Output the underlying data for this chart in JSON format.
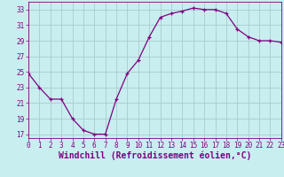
{
  "x": [
    0,
    1,
    2,
    3,
    4,
    5,
    6,
    7,
    8,
    9,
    10,
    11,
    12,
    13,
    14,
    15,
    16,
    17,
    18,
    19,
    20,
    21,
    22,
    23
  ],
  "y": [
    24.8,
    23.0,
    21.5,
    21.5,
    19.0,
    17.5,
    17.0,
    17.0,
    21.5,
    24.8,
    26.5,
    29.5,
    32.0,
    32.5,
    32.8,
    33.2,
    33.0,
    33.0,
    32.5,
    30.5,
    29.5,
    29.0,
    29.0,
    28.8
  ],
  "line_color": "#800080",
  "marker_color": "#800080",
  "background_color": "#c8eef0",
  "grid_color": "#aacccc",
  "xlabel": "Windchill (Refroidissement éolien,°C)",
  "xlabel_color": "#800080",
  "xlim": [
    0,
    23
  ],
  "ylim": [
    16.5,
    34
  ],
  "yticks": [
    17,
    19,
    21,
    23,
    25,
    27,
    29,
    31,
    33
  ],
  "xticks": [
    0,
    1,
    2,
    3,
    4,
    5,
    6,
    7,
    8,
    9,
    10,
    11,
    12,
    13,
    14,
    15,
    16,
    17,
    18,
    19,
    20,
    21,
    22,
    23
  ],
  "tick_color": "#800080",
  "tick_fontsize": 5.5,
  "xlabel_fontsize": 7.0,
  "spine_color": "#800080"
}
